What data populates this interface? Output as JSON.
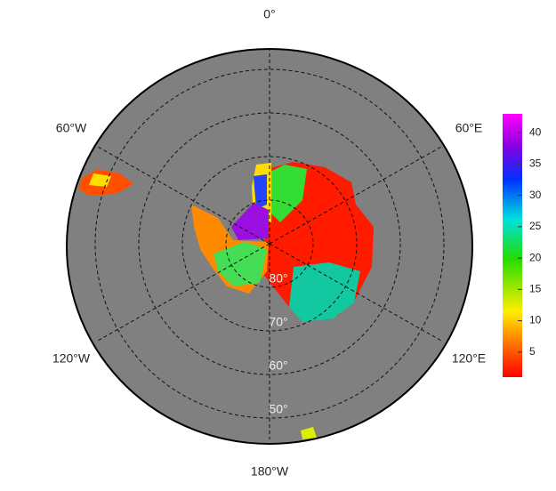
{
  "map": {
    "longitude_labels": [
      "0°",
      "60°E",
      "120°E",
      "180°W",
      "120°W",
      "60°W"
    ],
    "latitude_labels": [
      "80°",
      "70°",
      "60°",
      "50°"
    ],
    "colorbar": {
      "lim": [
        1,
        43
      ],
      "ticks": [
        5,
        10,
        15,
        20,
        25,
        30,
        35,
        40
      ]
    }
  }
}
